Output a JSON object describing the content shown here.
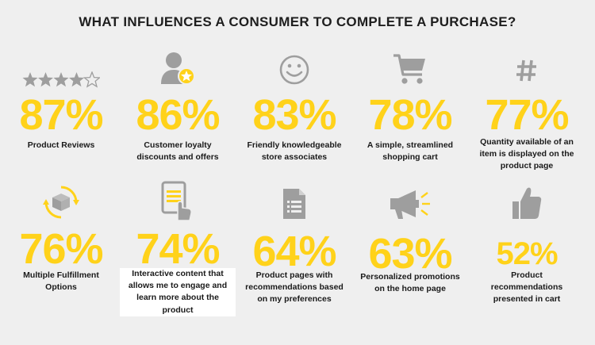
{
  "title": "WHAT INFLUENCES A CONSUMER TO COMPLETE A PURCHASE?",
  "colors": {
    "accent": "#ffd21a",
    "icon": "#9e9e9e",
    "background": "#efefef"
  },
  "stats": [
    {
      "icon": "four-stars-icon",
      "percent": "87%",
      "lines": [
        "Product Reviews"
      ]
    },
    {
      "icon": "loyal-customer-icon",
      "percent": "86%",
      "lines": [
        "Customer loyalty",
        "discounts and offers"
      ]
    },
    {
      "icon": "smiley-icon",
      "percent": "83%",
      "lines": [
        "Friendly knowledgeable",
        "store associates"
      ]
    },
    {
      "icon": "shopping-cart-icon",
      "percent": "78%",
      "lines": [
        "A simple, streamlined",
        "shopping cart"
      ]
    },
    {
      "icon": "hash-icon",
      "percent": "77%",
      "lines": [
        "Quantity available of an",
        "item is displayed on the",
        "product page"
      ]
    },
    {
      "icon": "package-cycle-icon",
      "percent": "76%",
      "lines": [
        "Multiple Fulfillment",
        "Options"
      ]
    },
    {
      "icon": "tablet-tap-icon",
      "percent": "74%",
      "lines": [
        "Interactive content that",
        "allows me to engage and",
        "learn more about the",
        "product"
      ]
    },
    {
      "icon": "document-list-icon",
      "percent": "64%",
      "lines": [
        "Product pages with",
        "recommendations based",
        "on my preferences"
      ]
    },
    {
      "icon": "megaphone-icon",
      "percent": "63%",
      "lines": [
        "Personalized promotions",
        "on the home page"
      ]
    },
    {
      "icon": "thumbs-up-icon",
      "percent": "52%",
      "lines": [
        "Product",
        "recommendations",
        "presented in cart"
      ]
    }
  ]
}
